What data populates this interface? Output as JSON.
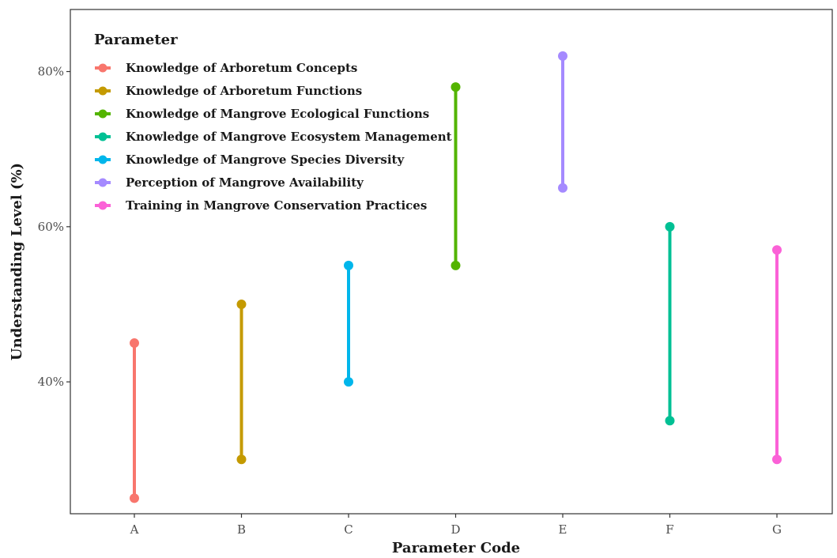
{
  "chart_data": {
    "type": "dumbbell",
    "title": "",
    "xlabel": "Parameter Code",
    "ylabel": "Understanding Level (%)",
    "categories": [
      "A",
      "B",
      "C",
      "D",
      "E",
      "F",
      "G"
    ],
    "y_ticks": [
      "40%",
      "60%",
      "80%"
    ],
    "y_tick_values": [
      40,
      60,
      80
    ],
    "ylim": [
      23,
      88
    ],
    "grid": false,
    "legend": {
      "title": "Parameter",
      "placement": "top-left"
    },
    "series": [
      {
        "name": "Knowledge of Arboretum Concepts",
        "category": "A",
        "low": 25,
        "high": 45,
        "color": "#F8766D"
      },
      {
        "name": "Knowledge of Arboretum Functions",
        "category": "B",
        "low": 30,
        "high": 50,
        "color": "#C49A00"
      },
      {
        "name": "Knowledge of Mangrove Ecological Functions",
        "category": "D",
        "low": 55,
        "high": 78,
        "color": "#53B400"
      },
      {
        "name": "Knowledge of Mangrove Ecosystem Management",
        "category": "F",
        "low": 35,
        "high": 60,
        "color": "#00C094"
      },
      {
        "name": "Knowledge of Mangrove Species Diversity",
        "category": "C",
        "low": 40,
        "high": 55,
        "color": "#00B6EB"
      },
      {
        "name": "Perception of Mangrove Availability",
        "category": "E",
        "low": 65,
        "high": 82,
        "color": "#A58AFF"
      },
      {
        "name": "Training in Mangrove Conservation Practices",
        "category": "G",
        "low": 30,
        "high": 57,
        "color": "#FB61D7"
      }
    ]
  }
}
